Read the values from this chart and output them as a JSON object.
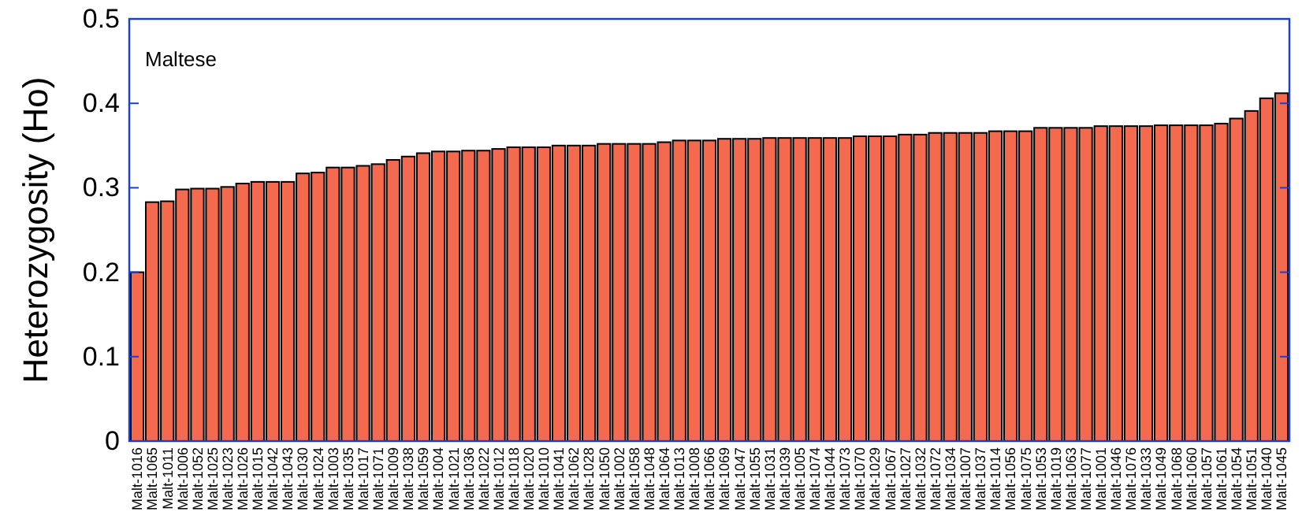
{
  "chart_data": {
    "type": "bar",
    "ylabel": "Heterozygosity (Ho)",
    "annotations": [
      "Maltese"
    ],
    "categories": [
      "Malt-1016",
      "Malt-1065",
      "Malt-1011",
      "Malt-1006",
      "Malt-1052",
      "Malt-1025",
      "Malt-1023",
      "Malt-1026",
      "Malt-1015",
      "Malt-1042",
      "Malt-1043",
      "Malt-1030",
      "Malt-1024",
      "Malt-1003",
      "Malt-1035",
      "Malt-1017",
      "Malt-1071",
      "Malt-1009",
      "Malt-1038",
      "Malt-1059",
      "Malt-1004",
      "Malt-1021",
      "Malt-1036",
      "Malt-1022",
      "Malt-1012",
      "Malt-1018",
      "Malt-1020",
      "Malt-1010",
      "Malt-1041",
      "Malt-1062",
      "Malt-1028",
      "Malt-1050",
      "Malt-1002",
      "Malt-1058",
      "Malt-1048",
      "Malt-1064",
      "Malt-1013",
      "Malt-1008",
      "Malt-1066",
      "Malt-1069",
      "Malt-1047",
      "Malt-1055",
      "Malt-1031",
      "Malt-1039",
      "Malt-1005",
      "Malt-1074",
      "Malt-1044",
      "Malt-1073",
      "Malt-1070",
      "Malt-1029",
      "Malt-1067",
      "Malt-1027",
      "Malt-1032",
      "Malt-1072",
      "Malt-1034",
      "Malt-1007",
      "Malt-1037",
      "Malt-1014",
      "Malt-1056",
      "Malt-1075",
      "Malt-1053",
      "Malt-1019",
      "Malt-1063",
      "Malt-1077",
      "Malt-1001",
      "Malt-1046",
      "Malt-1076",
      "Malt-1033",
      "Malt-1049",
      "Malt-1068",
      "Malt-1060",
      "Malt-1057",
      "Malt-1061",
      "Malt-1054",
      "Malt-1051",
      "Malt-1040",
      "Malt-1045"
    ],
    "values": [
      0.2,
      0.283,
      0.284,
      0.298,
      0.299,
      0.299,
      0.301,
      0.305,
      0.307,
      0.307,
      0.307,
      0.317,
      0.318,
      0.324,
      0.324,
      0.326,
      0.328,
      0.333,
      0.337,
      0.341,
      0.343,
      0.343,
      0.344,
      0.344,
      0.346,
      0.348,
      0.348,
      0.348,
      0.35,
      0.35,
      0.35,
      0.352,
      0.352,
      0.352,
      0.352,
      0.354,
      0.356,
      0.356,
      0.356,
      0.358,
      0.358,
      0.358,
      0.359,
      0.359,
      0.359,
      0.359,
      0.359,
      0.359,
      0.361,
      0.361,
      0.361,
      0.363,
      0.363,
      0.365,
      0.365,
      0.365,
      0.365,
      0.367,
      0.367,
      0.367,
      0.371,
      0.371,
      0.371,
      0.371,
      0.373,
      0.373,
      0.373,
      0.373,
      0.374,
      0.374,
      0.374,
      0.374,
      0.376,
      0.382,
      0.391,
      0.406,
      0.412
    ],
    "color": "#f46a4e",
    "ylim": [
      0,
      0.5
    ],
    "yticks": [
      {
        "value": 0,
        "label": "0"
      },
      {
        "value": 0.1,
        "label": "0.1"
      },
      {
        "value": 0.2,
        "label": "0.2"
      },
      {
        "value": 0.3,
        "label": "0.3"
      },
      {
        "value": 0.4,
        "label": "0.4"
      },
      {
        "value": 0.5,
        "label": "0.5"
      }
    ],
    "grid": false
  }
}
